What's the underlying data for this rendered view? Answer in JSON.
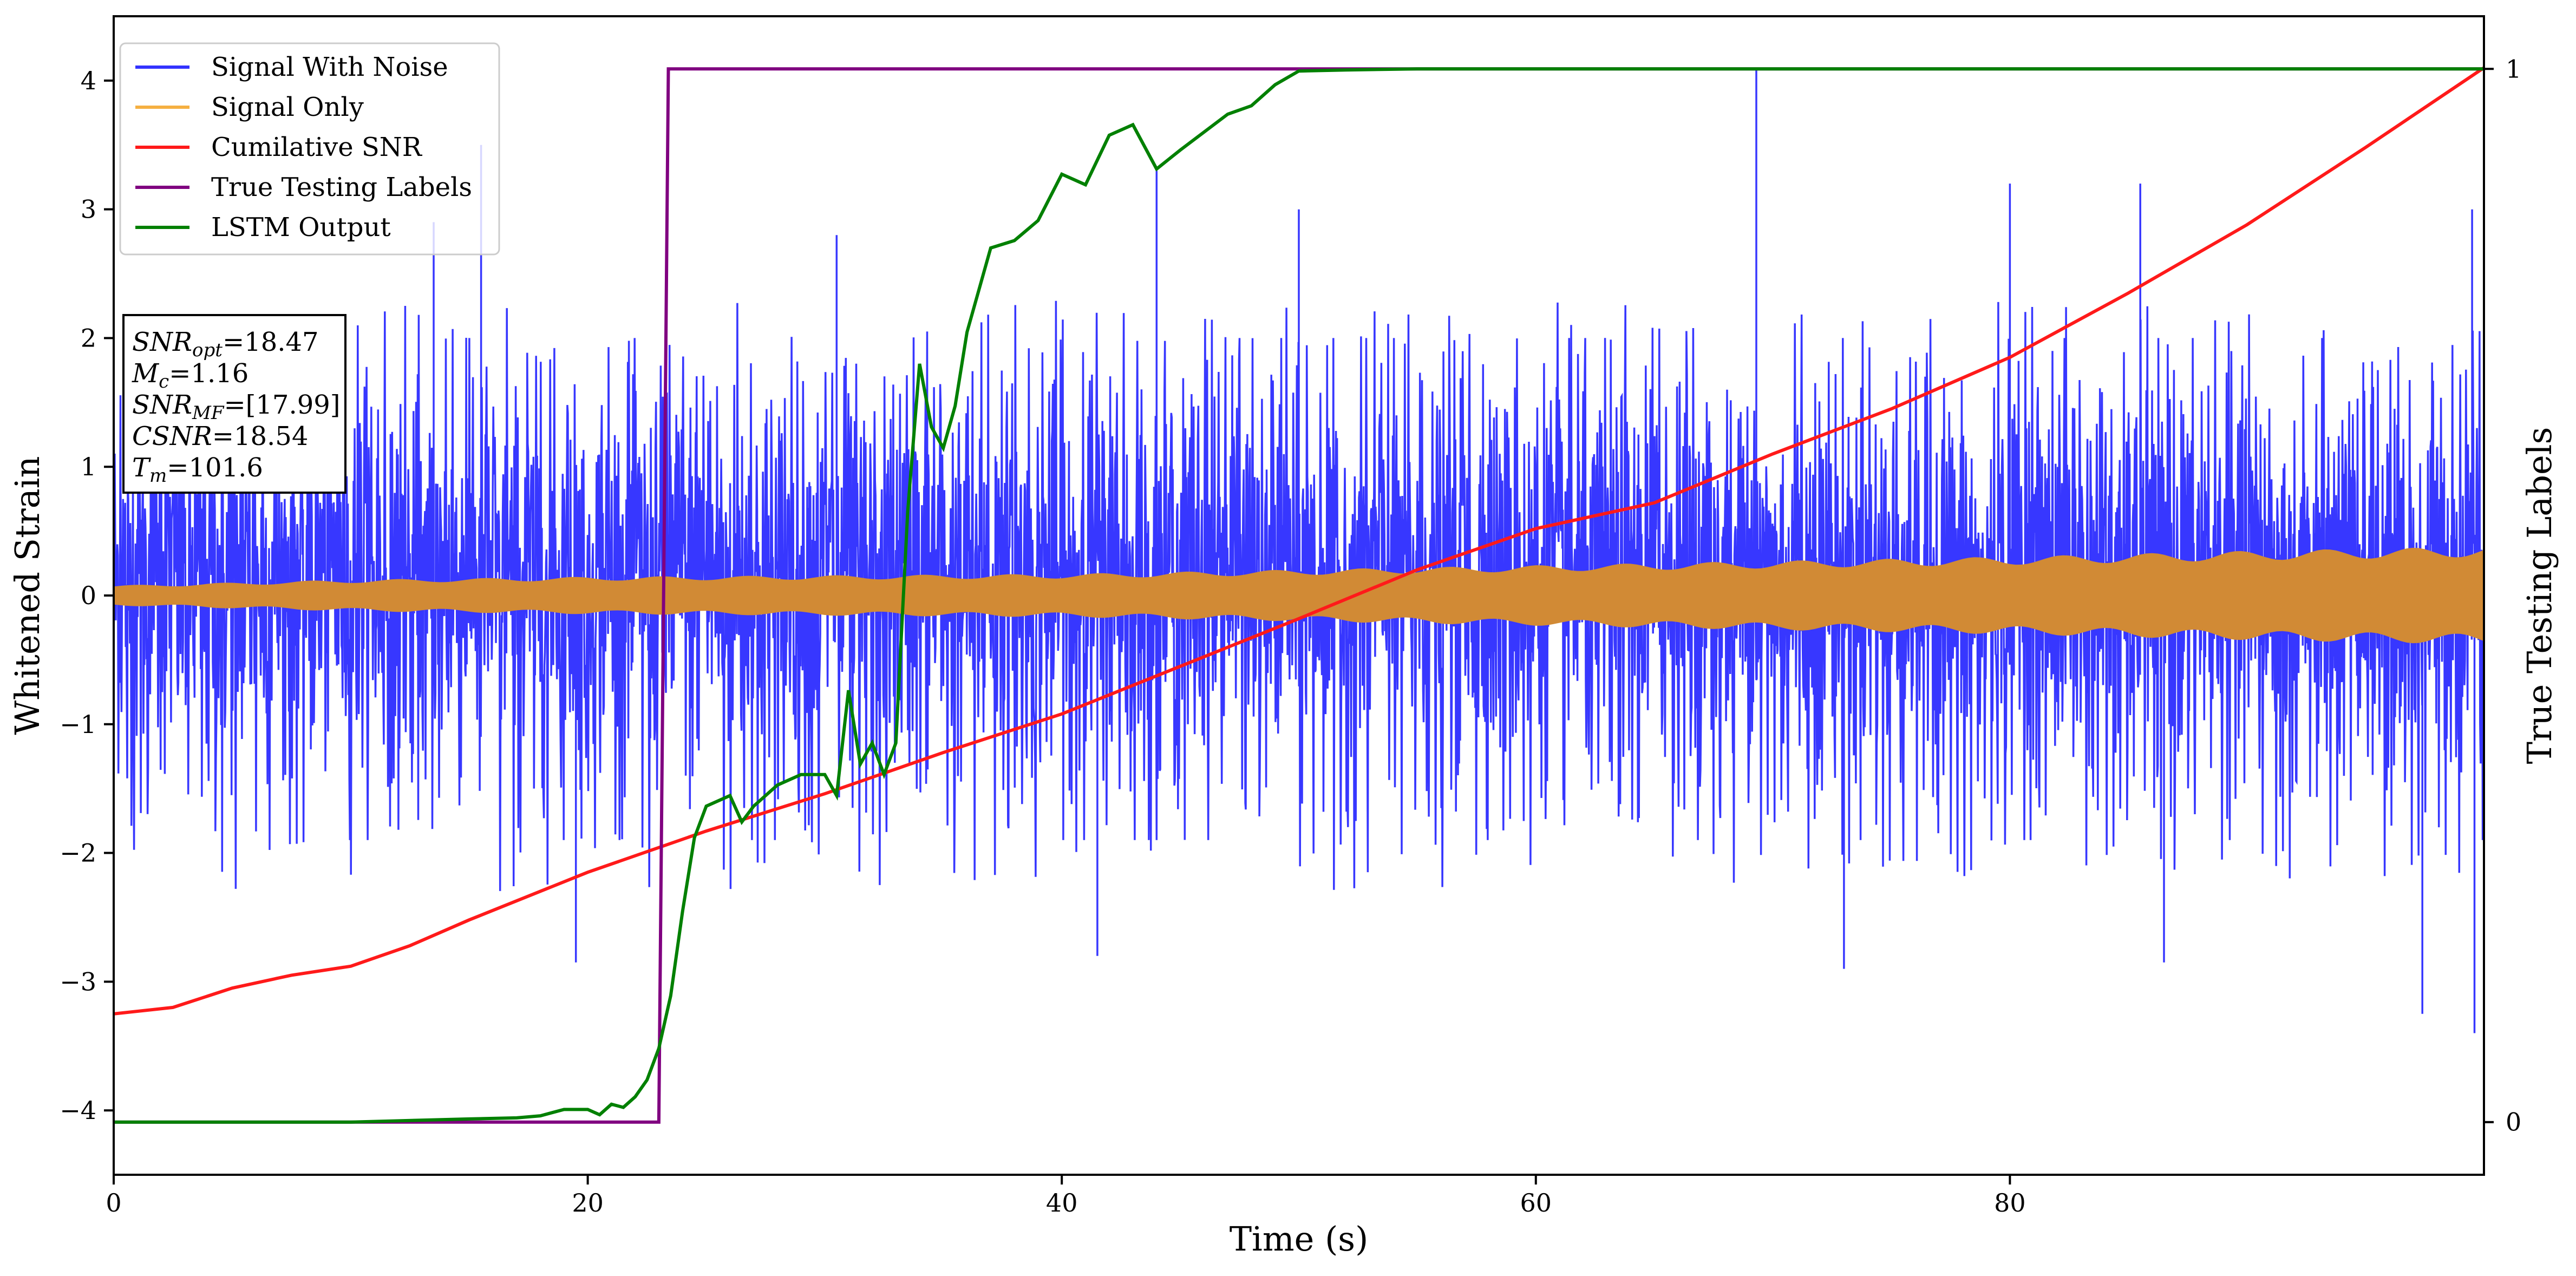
{
  "chart_data": {
    "type": "line",
    "title": "",
    "xlabel": "Time (s)",
    "ylabel": "Whitened Strain",
    "y2label": "True Testing Labels",
    "xlim": [
      0,
      100
    ],
    "ylim": [
      -4.5,
      4.5
    ],
    "y2lim": [
      -0.05,
      1.05
    ],
    "xticks": [
      "0",
      "20",
      "40",
      "60",
      "80"
    ],
    "yticks": [
      "−4",
      "−3",
      "−2",
      "−1",
      "0",
      "1",
      "2",
      "3",
      "4"
    ],
    "y2ticks": [
      "0",
      "1"
    ],
    "grid": false,
    "legend_position": "upper-left",
    "legend": [
      {
        "label": "Signal With Noise",
        "color": "#3333ff"
      },
      {
        "label": "Signal Only",
        "color": "#f5b041"
      },
      {
        "label": "Cumilative SNR",
        "color": "#ff1a1a"
      },
      {
        "label": "True Testing Labels",
        "color": "#800080"
      },
      {
        "label": "LSTM Output",
        "color": "#008000"
      }
    ],
    "series": [
      {
        "name": "Signal With Noise",
        "axis": "left",
        "color": "#3333ff",
        "description": "dense noisy whitened strain, band mostly within about -1.9 to 2.0 with spikes",
        "band_low": -1.9,
        "band_high": 2.0,
        "peaks": [
          [
            13.5,
            2.9
          ],
          [
            15.5,
            3.5
          ],
          [
            30.5,
            2.8
          ],
          [
            44.0,
            3.3
          ],
          [
            50.0,
            3.0
          ],
          [
            69.3,
            4.1
          ],
          [
            80.0,
            3.2
          ],
          [
            85.5,
            3.2
          ],
          [
            99.5,
            3.0
          ]
        ],
        "troughs": [
          [
            19.5,
            -2.85
          ],
          [
            41.5,
            -2.8
          ],
          [
            73.0,
            -2.9
          ],
          [
            86.5,
            -2.85
          ],
          [
            97.4,
            -3.25
          ],
          [
            99.6,
            -3.4
          ]
        ]
      },
      {
        "name": "Signal Only",
        "axis": "left",
        "color": "#f5b041",
        "description": "chirp signal envelope growing with time",
        "envelope": {
          "x": [
            0,
            5,
            10,
            20,
            30,
            40,
            50,
            60,
            70,
            80,
            90,
            100
          ],
          "amplitude": [
            0.07,
            0.09,
            0.11,
            0.13,
            0.14,
            0.15,
            0.18,
            0.21,
            0.24,
            0.27,
            0.31,
            0.34
          ]
        }
      },
      {
        "name": "Cumilative SNR",
        "axis": "left",
        "color": "#ff1a1a",
        "x": [
          0,
          2.5,
          5,
          7.5,
          10,
          12.5,
          15,
          20,
          25,
          30,
          35,
          40,
          45,
          50,
          55,
          60,
          65,
          70,
          75,
          80,
          85,
          90,
          95,
          100
        ],
        "y": [
          -3.25,
          -3.2,
          -3.05,
          -2.95,
          -2.88,
          -2.72,
          -2.52,
          -2.15,
          -1.83,
          -1.54,
          -1.22,
          -0.92,
          -0.55,
          -0.18,
          0.2,
          0.52,
          0.72,
          1.1,
          1.45,
          1.85,
          2.35,
          2.88,
          3.48,
          4.1
        ]
      },
      {
        "name": "True Testing Labels",
        "axis": "right",
        "color": "#800080",
        "x": [
          0,
          23.0,
          23.4,
          100
        ],
        "y": [
          0,
          0,
          1,
          1
        ]
      },
      {
        "name": "LSTM Output",
        "axis": "right",
        "color": "#008000",
        "x": [
          0,
          10,
          15,
          17,
          18,
          19,
          20,
          20.5,
          21,
          21.5,
          22,
          22.5,
          23,
          23.5,
          24,
          24.5,
          25,
          26,
          26.5,
          27,
          28,
          29,
          30,
          30.5,
          31,
          31.5,
          32,
          32.5,
          33,
          33.5,
          34,
          34.5,
          35,
          35.5,
          36,
          37,
          38,
          39,
          40,
          41,
          42,
          43,
          44,
          45,
          46,
          47,
          48,
          49,
          50,
          52,
          55,
          60,
          70,
          80,
          90,
          100
        ],
        "y": [
          0,
          0,
          0.003,
          0.004,
          0.006,
          0.012,
          0.012,
          0.007,
          0.017,
          0.014,
          0.024,
          0.04,
          0.07,
          0.12,
          0.2,
          0.27,
          0.3,
          0.31,
          0.285,
          0.3,
          0.32,
          0.33,
          0.33,
          0.31,
          0.41,
          0.34,
          0.36,
          0.33,
          0.36,
          0.58,
          0.72,
          0.66,
          0.64,
          0.68,
          0.75,
          0.83,
          0.837,
          0.856,
          0.9,
          0.89,
          0.937,
          0.947,
          0.905,
          0.923,
          0.94,
          0.957,
          0.965,
          0.985,
          0.998,
          0.999,
          1.0,
          1.0,
          1.0,
          1.0,
          1.0,
          1.0
        ]
      }
    ],
    "annotations": [
      {
        "label_html": "SNR<sub>opt</sub>=18.47"
      },
      {
        "label_html": "M<sub>c</sub>=1.16"
      },
      {
        "label_html": "SNR<sub>MF</sub>=[17.99]"
      },
      {
        "label_html": "CSNR=18.54"
      },
      {
        "label_html": "T<sub>m</sub>=101.6"
      }
    ],
    "info_box": [
      {
        "var": "SNR",
        "sub": "opt",
        "value": "=18.47"
      },
      {
        "var": "M",
        "sub": "c",
        "value": "=1.16"
      },
      {
        "var": "SNR",
        "sub": "MF",
        "value": "=[17.99]"
      },
      {
        "var": "CSNR",
        "sub": "",
        "value": "=18.54"
      },
      {
        "var": "T",
        "sub": "m",
        "value": "=101.6"
      }
    ]
  }
}
